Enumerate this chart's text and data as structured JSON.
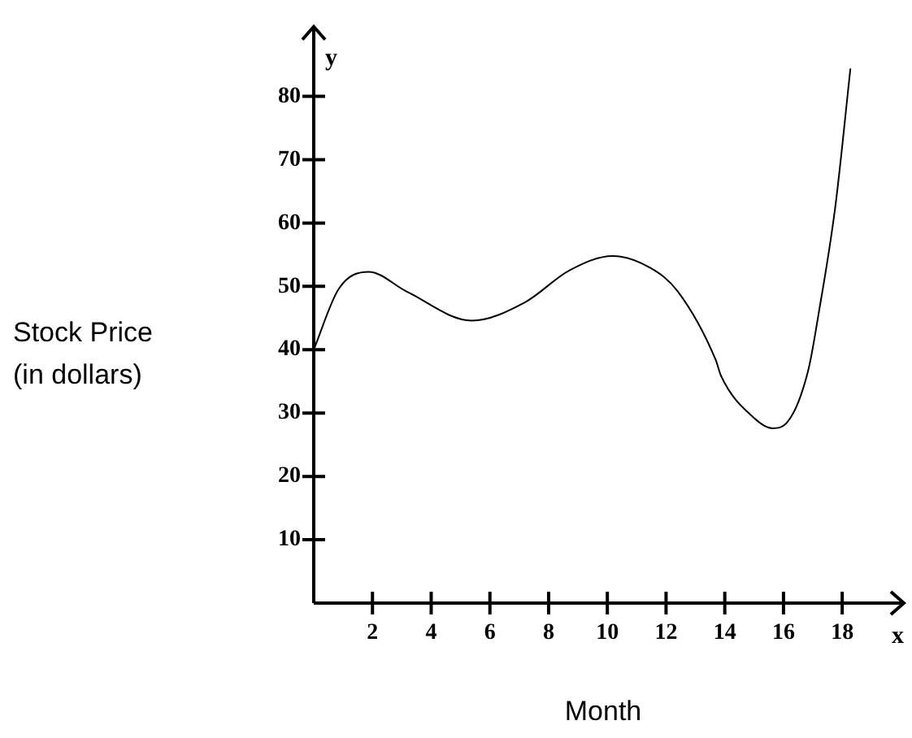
{
  "chart_data": {
    "type": "line",
    "xlabel": "Month",
    "ylabel": "Stock Price\n(in dollars)",
    "annotations": [
      "y",
      "x"
    ],
    "series": [
      {
        "color": "#000000",
        "x": [
          0,
          0.85,
          1.87,
          3.16,
          5.38,
          7.2,
          8.7,
          10.18,
          11.47,
          12.4,
          13.69,
          13.87,
          14.98,
          15.63,
          16.1,
          16.84,
          17.2,
          17.76,
          18.28
        ],
        "values": [
          40,
          49.6,
          52.3,
          49.2,
          44.6,
          47.5,
          52.5,
          54.8,
          52.9,
          49.2,
          38.4,
          35.9,
          29.3,
          27.6,
          28.4,
          36.7,
          45.8,
          62.4,
          84.4
        ]
      }
    ],
    "xlim": [
      0,
      20.1
    ],
    "ylim": [
      0,
      91
    ],
    "xticks": [
      2,
      4,
      6,
      8,
      10,
      12,
      14,
      16,
      18
    ],
    "yticks": [
      10,
      20,
      30,
      40,
      50,
      60,
      70,
      80
    ],
    "grid": false,
    "legend": false,
    "marker": "none",
    "line_style": "solid"
  }
}
